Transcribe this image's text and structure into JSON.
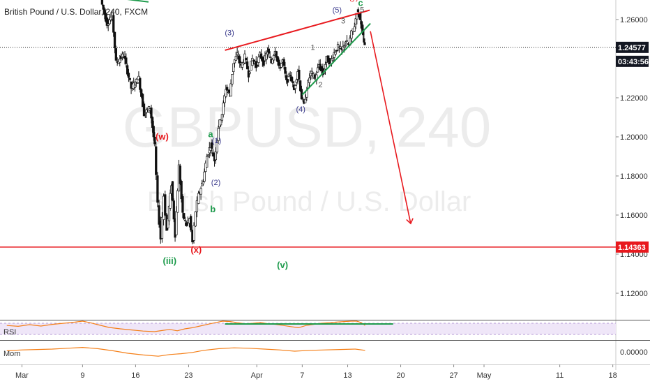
{
  "header": {
    "title": "British Pound / U.S. Dollar, 240, FXCM"
  },
  "watermark": {
    "symbol": "GBPUSD, 240",
    "name": "British Pound / U.S. Dollar"
  },
  "price_tags": [
    {
      "label": "1.24577",
      "color": "#131722",
      "value": 1.24577
    },
    {
      "label": "03:43:56",
      "color": "#131722",
      "value": 1.239
    },
    {
      "label": "1.14363",
      "color": "#e8191e",
      "value": 1.14363
    }
  ],
  "panes": {
    "rsi_label": "RSI",
    "mom_label": "Mom",
    "mom_tick": "0.00000"
  },
  "colors": {
    "red": "#e8191e",
    "green": "#1e9b4c",
    "navy": "#3a3a8c",
    "orange": "#f57f17",
    "rsi_band": "#efe6f8"
  },
  "chart_data": {
    "type": "candlestick",
    "title": "British Pound / U.S. Dollar, 240, FXCM",
    "ylim": [
      1.1,
      1.27
    ],
    "y_ticks": [
      1.26,
      1.24,
      1.22,
      1.2,
      1.18,
      1.16,
      1.14,
      1.12
    ],
    "y_tick_labels": [
      "1.26000",
      "1.24000",
      "1.22000",
      "1.20000",
      "1.18000",
      "1.16000",
      "1.14000",
      "1.12000"
    ],
    "x_ticks": [
      {
        "label": "Mar",
        "day": 1
      },
      {
        "label": "9",
        "day": 9
      },
      {
        "label": "16",
        "day": 16
      },
      {
        "label": "23",
        "day": 23
      },
      {
        "label": "Apr",
        "day": 32
      },
      {
        "label": "7",
        "day": 38
      },
      {
        "label": "13",
        "day": 44
      },
      {
        "label": "20",
        "day": 51
      },
      {
        "label": "27",
        "day": 58
      },
      {
        "label": "May",
        "day": 62
      },
      {
        "label": "11",
        "day": 72
      },
      {
        "label": "18",
        "day": 79
      }
    ],
    "x_range_days": [
      -1.9,
      79.4
    ],
    "price_path": [
      [
        11.5,
        1.27
      ],
      [
        12.3,
        1.258
      ],
      [
        13.0,
        1.262
      ],
      [
        13.5,
        1.238
      ],
      [
        14.5,
        1.242
      ],
      [
        15.5,
        1.225
      ],
      [
        16.5,
        1.23
      ],
      [
        17.2,
        1.212
      ],
      [
        18.0,
        1.215
      ],
      [
        18.6,
        1.195
      ],
      [
        19.0,
        1.165
      ],
      [
        19.4,
        1.148
      ],
      [
        19.8,
        1.17
      ],
      [
        20.2,
        1.152
      ],
      [
        20.8,
        1.176
      ],
      [
        21.3,
        1.15
      ],
      [
        21.8,
        1.185
      ],
      [
        22.3,
        1.16
      ],
      [
        22.8,
        1.155
      ],
      [
        23.2,
        1.158
      ],
      [
        23.6,
        1.146
      ],
      [
        24.0,
        1.162
      ],
      [
        24.4,
        1.17
      ],
      [
        25.0,
        1.178
      ],
      [
        25.5,
        1.19
      ],
      [
        26.0,
        1.196
      ],
      [
        26.5,
        1.188
      ],
      [
        27.0,
        1.205
      ],
      [
        27.5,
        1.212
      ],
      [
        28.0,
        1.225
      ],
      [
        28.5,
        1.222
      ],
      [
        29.0,
        1.238
      ],
      [
        29.5,
        1.242
      ],
      [
        30.0,
        1.236
      ],
      [
        30.5,
        1.241
      ],
      [
        31.0,
        1.232
      ],
      [
        31.5,
        1.24
      ],
      [
        32.0,
        1.236
      ],
      [
        32.5,
        1.242
      ],
      [
        33.0,
        1.238
      ],
      [
        33.5,
        1.244
      ],
      [
        34.0,
        1.238
      ],
      [
        34.5,
        1.245
      ],
      [
        35.0,
        1.235
      ],
      [
        35.5,
        1.239
      ],
      [
        36.0,
        1.228
      ],
      [
        36.5,
        1.232
      ],
      [
        37.0,
        1.224
      ],
      [
        37.5,
        1.234
      ],
      [
        38.0,
        1.22
      ],
      [
        38.3,
        1.216
      ],
      [
        38.7,
        1.225
      ],
      [
        39.2,
        1.233
      ],
      [
        39.8,
        1.23
      ],
      [
        40.3,
        1.237
      ],
      [
        40.8,
        1.232
      ],
      [
        41.3,
        1.24
      ],
      [
        41.8,
        1.238
      ],
      [
        42.3,
        1.243
      ],
      [
        42.8,
        1.246
      ],
      [
        43.3,
        1.244
      ],
      [
        43.8,
        1.249
      ],
      [
        44.2,
        1.247
      ],
      [
        44.6,
        1.253
      ],
      [
        45.0,
        1.257
      ],
      [
        45.3,
        1.264
      ],
      [
        45.6,
        1.262
      ],
      [
        45.9,
        1.257
      ],
      [
        46.1,
        1.251
      ],
      [
        46.3,
        1.2458
      ]
    ],
    "trendlines": [
      {
        "color": "#1e9b4c",
        "from": [
          11.5,
          1.272
        ],
        "to": [
          17.7,
          1.269
        ]
      },
      {
        "color": "#e8191e",
        "from": [
          27.8,
          1.2443
        ],
        "to": [
          46.9,
          1.2648
        ]
      },
      {
        "color": "#1e9b4c",
        "from": [
          38.0,
          1.2215
        ],
        "to": [
          47.0,
          1.258
        ]
      },
      {
        "color": "#e8191e",
        "from": [
          47.0,
          1.254
        ],
        "to": [
          52.3,
          1.156
        ],
        "arrow": true
      }
    ],
    "support_level": 1.14363,
    "wave_labels": [
      {
        "text": "(w)",
        "day": 19.5,
        "price": 1.1986,
        "color": "#e8191e",
        "size": "big"
      },
      {
        "text": "a",
        "day": 25.9,
        "price": 1.1998,
        "color": "#1e9b4c",
        "size": "big"
      },
      {
        "text": "(1)",
        "day": 26.7,
        "price": 1.1968,
        "color": "#3a3a8c",
        "size": "small"
      },
      {
        "text": "(2)",
        "day": 26.6,
        "price": 1.1753,
        "color": "#3a3a8c",
        "size": "small"
      },
      {
        "text": "b",
        "day": 26.2,
        "price": 1.1614,
        "color": "#1e9b4c",
        "size": "big"
      },
      {
        "text": "(x)",
        "day": 24.0,
        "price": 1.1408,
        "color": "#e8191e",
        "size": "big"
      },
      {
        "text": "(iii)",
        "day": 20.5,
        "price": 1.135,
        "color": "#1e9b4c",
        "size": "big"
      },
      {
        "text": "(v)",
        "day": 35.4,
        "price": 1.1328,
        "color": "#1e9b4c",
        "size": "big"
      },
      {
        "text": "(3)",
        "day": 28.4,
        "price": 1.2519,
        "color": "#3a3a8c",
        "size": "small"
      },
      {
        "text": "(4)",
        "day": 37.8,
        "price": 1.2128,
        "color": "#3a3a8c",
        "size": "small"
      },
      {
        "text": "1",
        "day": 39.4,
        "price": 1.2445,
        "color": "#555555",
        "size": "small"
      },
      {
        "text": "2",
        "day": 40.4,
        "price": 1.2254,
        "color": "#555555",
        "size": "small"
      },
      {
        "text": "3",
        "day": 43.4,
        "price": 1.258,
        "color": "#555555",
        "size": "small"
      },
      {
        "text": "4",
        "day": 43.6,
        "price": 1.2455,
        "color": "#555555",
        "size": "small"
      },
      {
        "text": "(5)",
        "day": 42.6,
        "price": 1.2635,
        "color": "#3a3a8c",
        "size": "small"
      },
      {
        "text": "5",
        "day": 45.9,
        "price": 1.2637,
        "color": "#555555",
        "size": "small"
      },
      {
        "text": "c",
        "day": 45.7,
        "price": 1.2669,
        "color": "#1e9b4c",
        "size": "big"
      },
      {
        "text": "(y)",
        "day": 44.8,
        "price": 1.27,
        "color": "#e8191e",
        "size": "small"
      }
    ],
    "rsi": {
      "range": [
        0,
        100
      ],
      "band": [
        30,
        70
      ],
      "values": [
        [
          -1.0,
          52
        ],
        [
          0.5,
          49
        ],
        [
          2.0,
          55
        ],
        [
          3.5,
          50
        ],
        [
          5.0,
          56
        ],
        [
          6.5,
          60
        ],
        [
          8.0,
          64
        ],
        [
          9.0,
          68
        ],
        [
          10.0,
          62
        ],
        [
          11.0,
          55
        ],
        [
          12.5,
          45
        ],
        [
          14.0,
          40
        ],
        [
          15.5,
          36
        ],
        [
          17.0,
          32
        ],
        [
          18.5,
          30
        ],
        [
          19.5,
          34
        ],
        [
          20.5,
          38
        ],
        [
          21.5,
          33
        ],
        [
          22.5,
          40
        ],
        [
          23.5,
          44
        ],
        [
          24.5,
          50
        ],
        [
          25.5,
          56
        ],
        [
          26.5,
          62
        ],
        [
          27.5,
          68
        ],
        [
          28.5,
          66
        ],
        [
          29.5,
          62
        ],
        [
          30.5,
          58
        ],
        [
          31.5,
          60
        ],
        [
          32.5,
          63
        ],
        [
          33.5,
          58
        ],
        [
          34.5,
          56
        ],
        [
          35.5,
          52
        ],
        [
          36.5,
          48
        ],
        [
          37.5,
          44
        ],
        [
          38.5,
          52
        ],
        [
          39.5,
          56
        ],
        [
          40.5,
          60
        ],
        [
          41.5,
          62
        ],
        [
          42.5,
          64
        ],
        [
          43.5,
          66
        ],
        [
          44.5,
          70
        ],
        [
          45.2,
          72
        ],
        [
          45.8,
          62
        ],
        [
          46.3,
          52
        ]
      ],
      "divergence_line": {
        "from": [
          27.8,
          73
        ],
        "to": [
          50.0,
          73
        ]
      }
    },
    "momentum": {
      "values": [
        [
          -1.0,
          0.1
        ],
        [
          1.0,
          0.3
        ],
        [
          3.0,
          0.4
        ],
        [
          5.0,
          0.5
        ],
        [
          7.0,
          0.7
        ],
        [
          9.0,
          0.9
        ],
        [
          11.0,
          0.6
        ],
        [
          13.0,
          0.1
        ],
        [
          15.0,
          -0.5
        ],
        [
          17.0,
          -0.9
        ],
        [
          19.0,
          -1.2
        ],
        [
          20.5,
          -0.8
        ],
        [
          22.0,
          -0.6
        ],
        [
          23.5,
          -0.3
        ],
        [
          25.0,
          0.2
        ],
        [
          27.0,
          0.6
        ],
        [
          29.0,
          0.8
        ],
        [
          31.0,
          0.7
        ],
        [
          33.0,
          0.5
        ],
        [
          35.0,
          0.3
        ],
        [
          37.0,
          0.0
        ],
        [
          39.0,
          0.2
        ],
        [
          41.0,
          0.3
        ],
        [
          43.0,
          0.4
        ],
        [
          45.0,
          0.5
        ],
        [
          46.3,
          0.2
        ]
      ]
    }
  }
}
